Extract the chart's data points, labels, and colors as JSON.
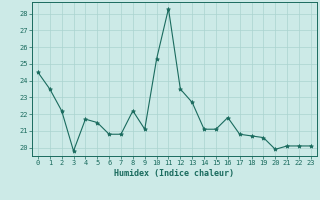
{
  "x": [
    0,
    1,
    2,
    3,
    4,
    5,
    6,
    7,
    8,
    9,
    10,
    11,
    12,
    13,
    14,
    15,
    16,
    17,
    18,
    19,
    20,
    21,
    22,
    23
  ],
  "y": [
    24.5,
    23.5,
    22.2,
    19.8,
    21.7,
    21.5,
    20.8,
    20.8,
    22.2,
    21.1,
    25.3,
    28.3,
    23.5,
    22.7,
    21.1,
    21.1,
    21.8,
    20.8,
    20.7,
    20.6,
    19.9,
    20.1,
    20.1,
    20.1
  ],
  "line_color": "#1a6b5e",
  "marker": "*",
  "marker_size": 3,
  "bg_color": "#cceae7",
  "grid_color": "#aad4d0",
  "xlabel": "Humidex (Indice chaleur)",
  "ylim": [
    19.5,
    28.7
  ],
  "yticks": [
    20,
    21,
    22,
    23,
    24,
    25,
    26,
    27,
    28
  ],
  "xticks": [
    0,
    1,
    2,
    3,
    4,
    5,
    6,
    7,
    8,
    9,
    10,
    11,
    12,
    13,
    14,
    15,
    16,
    17,
    18,
    19,
    20,
    21,
    22,
    23
  ],
  "tick_color": "#1a6b5e",
  "label_color": "#1a6b5e",
  "axis_color": "#1a6b5e"
}
